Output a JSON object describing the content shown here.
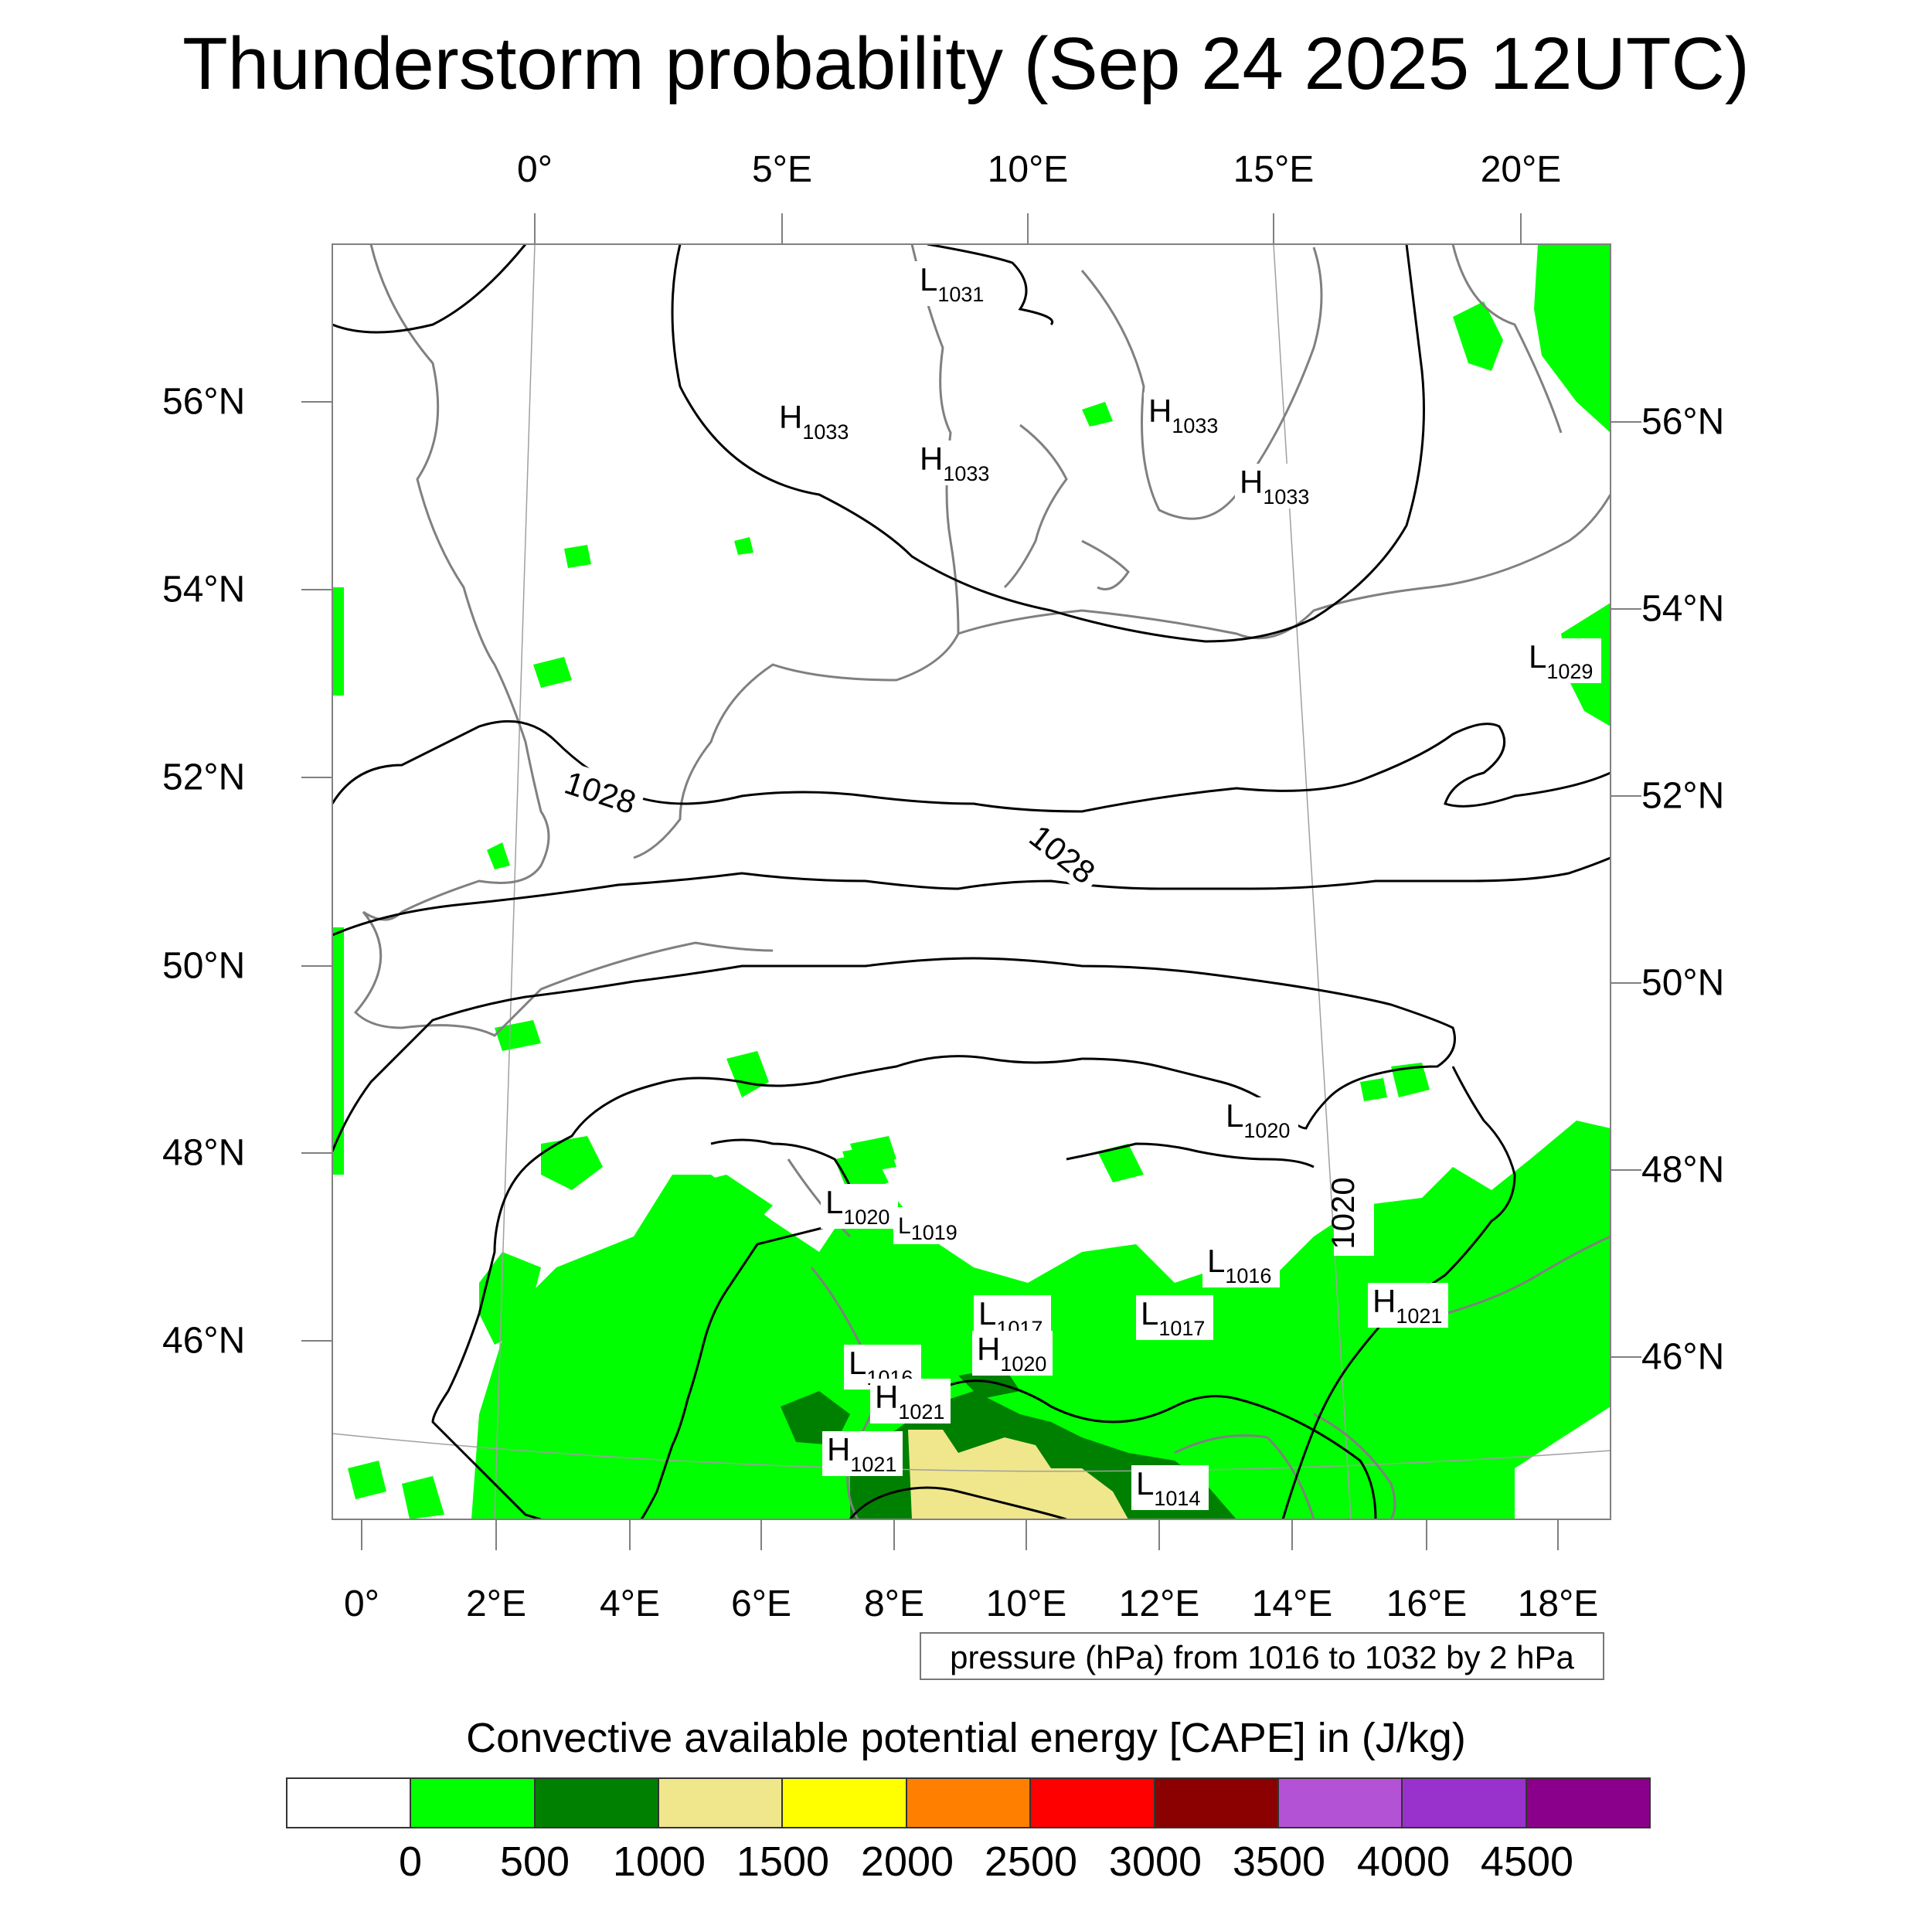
{
  "title": "Thunderstorm probability (Sep 24 2025 12UTC)",
  "colors": {
    "contour": "#000000",
    "coastline": "#808080",
    "cape_low": "#00ff00",
    "cape_mid": "#008000",
    "cape_high": "#f0e68c"
  },
  "axes": {
    "top_lon": [
      "0°",
      "5°E",
      "10°E",
      "15°E",
      "20°E"
    ],
    "bottom_lon": [
      "0°",
      "2°E",
      "4°E",
      "6°E",
      "8°E",
      "10°E",
      "12°E",
      "14°E",
      "16°E",
      "18°E"
    ],
    "left_lat": [
      "56°N",
      "54°N",
      "52°N",
      "50°N",
      "48°N",
      "46°N"
    ],
    "right_lat": [
      "56°N",
      "54°N",
      "52°N",
      "50°N",
      "48°N",
      "46°N"
    ]
  },
  "contour_labels": [
    "1028",
    "1028",
    "1020"
  ],
  "pressure_centers": [
    {
      "type": "L",
      "value": "1031"
    },
    {
      "type": "H",
      "value": "1033"
    },
    {
      "type": "H",
      "value": "1033"
    },
    {
      "type": "H",
      "value": "1033"
    },
    {
      "type": "H",
      "value": "1033"
    },
    {
      "type": "L",
      "value": "1029"
    },
    {
      "type": "L",
      "value": "1020"
    },
    {
      "type": "L",
      "value": "1020"
    },
    {
      "type": "L",
      "value": "1019"
    },
    {
      "type": "L",
      "value": "1016"
    },
    {
      "type": "H",
      "value": "1021"
    },
    {
      "type": "L",
      "value": "1017"
    },
    {
      "type": "L",
      "value": "1017"
    },
    {
      "type": "H",
      "value": "1020"
    },
    {
      "type": "L",
      "value": "1016"
    },
    {
      "type": "H",
      "value": "1021"
    },
    {
      "type": "H",
      "value": "1021"
    },
    {
      "type": "L",
      "value": "1014"
    }
  ],
  "pressure_note": "pressure (hPa) from 1016 to 1032 by 2 hPa",
  "legend": {
    "title": "Convective available potential energy [CAPE] in (J/kg)",
    "colors": [
      "#ffffff",
      "#00ff00",
      "#008000",
      "#f0e68c",
      "#ffff00",
      "#ff8000",
      "#ff0000",
      "#8b0000",
      "#b452d6",
      "#9932cc",
      "#8b008b"
    ],
    "labels": [
      "0",
      "500",
      "1000",
      "1500",
      "2000",
      "2500",
      "3000",
      "3500",
      "4000",
      "4500"
    ]
  }
}
